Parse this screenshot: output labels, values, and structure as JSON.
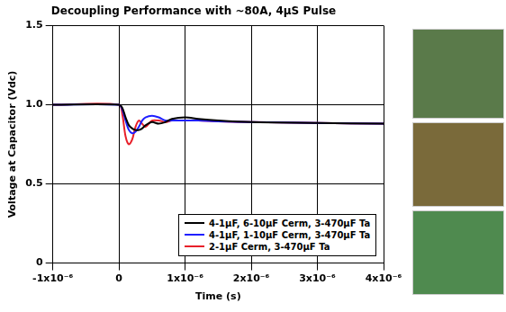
{
  "chart_data": {
    "type": "line",
    "title": "Decoupling Performance with ~80A, 4µS Pulse",
    "x_label": "Time (s)",
    "y_label": "Voltage at Capacitor (Vdc)",
    "x": [
      -1e-06,
      0,
      5e-08,
      1e-07,
      1.5e-07,
      2e-07,
      2.5e-07,
      3e-07,
      3.5e-07,
      4e-07,
      5e-07,
      6e-07,
      7e-07,
      8e-07,
      1e-06,
      1.2e-06,
      1.5e-06,
      2e-06,
      3e-06,
      4e-06
    ],
    "series": [
      {
        "name": "4-1µF, 6-10µF Cerm, 3-470µF Ta",
        "color": "#000000",
        "values": [
          1.0,
          1.0,
          0.98,
          0.92,
          0.87,
          0.85,
          0.84,
          0.84,
          0.85,
          0.87,
          0.89,
          0.88,
          0.89,
          0.91,
          0.92,
          0.91,
          0.9,
          0.89,
          0.885,
          0.88
        ]
      },
      {
        "name": "4-1µF, 1-10µF Cerm, 3-470µF Ta",
        "color": "#1f1fff",
        "values": [
          1.0,
          1.0,
          0.97,
          0.9,
          0.84,
          0.82,
          0.83,
          0.86,
          0.9,
          0.92,
          0.93,
          0.92,
          0.9,
          0.9,
          0.9,
          0.9,
          0.895,
          0.89,
          0.885,
          0.88
        ]
      },
      {
        "name": "2-1µF Cerm, 3-470µF Ta",
        "color": "#e8202a",
        "values": [
          1.0,
          1.0,
          0.94,
          0.8,
          0.75,
          0.78,
          0.86,
          0.9,
          0.88,
          0.86,
          0.9,
          0.9,
          0.89,
          0.9,
          0.9,
          0.9,
          0.895,
          0.89,
          0.885,
          0.88
        ]
      }
    ],
    "xlim": [
      -1e-06,
      4e-06
    ],
    "xticks": [
      {
        "value": -1e-06,
        "label": "-1x10⁻⁶"
      },
      0,
      {
        "value": 1e-06,
        "label": "1x10⁻⁶"
      },
      {
        "value": 2e-06,
        "label": "2x10⁻⁶"
      },
      {
        "value": 3e-06,
        "label": "3x10⁻⁶"
      },
      {
        "value": 4e-06,
        "label": "4x10⁻⁶"
      }
    ],
    "ylim": [
      0,
      1.5
    ],
    "yticks": [
      0,
      0.5,
      {
        "value": 1,
        "label": "1.0"
      },
      1.5
    ],
    "grid": true,
    "legend": "lower right",
    "marker": "none",
    "line_style": "solid"
  }
}
